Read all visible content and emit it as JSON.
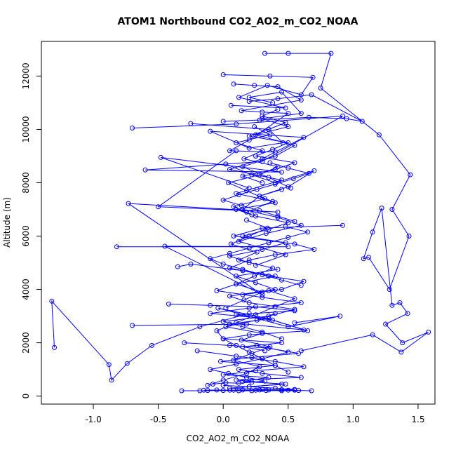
{
  "chart_data": {
    "type": "line",
    "title": "ATOM1 Northbound CO2_AO2_m_CO2_NOAA",
    "xlabel": "CO2_AO2_m_CO2_NOAA",
    "ylabel": "Altitude (m)",
    "xlim": [
      -1.4,
      1.63
    ],
    "ylim": [
      -300,
      13300
    ],
    "x_ticks": [
      -1.0,
      -0.5,
      0.0,
      0.5,
      1.0,
      1.5
    ],
    "x_tick_labels": [
      "-1.0",
      "-0.5",
      "0.0",
      "0.5",
      "1.0",
      "1.5"
    ],
    "y_ticks": [
      0,
      2000,
      4000,
      6000,
      8000,
      10000,
      12000
    ],
    "y_tick_labels": [
      "0",
      "2000",
      "4000",
      "6000",
      "8000",
      "10000",
      "12000"
    ],
    "grid": false,
    "legend": "none",
    "marker": "open-circle",
    "color": "#0000ff",
    "series": [
      {
        "x": [
          0.32,
          0.5,
          0.83,
          0.75,
          1.2,
          1.44,
          1.3,
          1.43,
          1.28,
          1.12,
          1.08,
          1.15,
          1.22,
          1.3,
          1.36,
          1.42,
          1.25,
          1.38,
          1.58,
          1.37,
          1.15,
          0.6
        ],
        "y": [
          12850,
          12850,
          12850,
          11550,
          9800,
          8300,
          7000,
          6000,
          4000,
          5200,
          5150,
          6150,
          7050,
          3400,
          3500,
          3100,
          2700,
          2000,
          2400,
          1650,
          2300,
          1700
        ]
      },
      {
        "x": [
          -1.3,
          -1.32,
          -0.88,
          -0.86,
          -0.74,
          -0.55,
          -0.18,
          0.2
        ],
        "y": [
          1820,
          3560,
          1180,
          600,
          1220,
          1900,
          2600,
          3100
        ]
      },
      {
        "x": [
          -0.82,
          0.5,
          -0.45,
          0.3,
          -0.73,
          0.42,
          -0.5,
          0.1
        ],
        "y": [
          5600,
          5600,
          5620,
          3800,
          7220,
          6900,
          7100,
          9200
        ]
      },
      {
        "x": [
          -0.7,
          0.1,
          0.92,
          0.3,
          -0.6,
          0.45,
          -0.48,
          0.2
        ],
        "y": [
          10050,
          10200,
          10500,
          8800,
          8480,
          8400,
          8950,
          7800
        ]
      },
      {
        "x": [
          -0.7,
          0.18,
          0.62,
          0.35,
          -0.04,
          0.5,
          0.9,
          0.55
        ],
        "y": [
          2650,
          2700,
          2480,
          2900,
          3300,
          2600,
          3000,
          2750
        ]
      },
      {
        "x": [
          0.0,
          0.28,
          0.66,
          0.95,
          1.07,
          0.68,
          0.42,
          0.2
        ],
        "y": [
          10300,
          10350,
          10450,
          10400,
          10300,
          11300,
          11150,
          11050
        ]
      },
      {
        "x": [
          0.0,
          0.36,
          0.69,
          0.6,
          0.34,
          0.12,
          0.48,
          0.06
        ],
        "y": [
          12050,
          12000,
          11950,
          11300,
          11650,
          11200,
          10800,
          10900
        ]
      },
      {
        "x": [
          0.08,
          0.24,
          0.42,
          0.6,
          0.14,
          0.3,
          0.5,
          0.2,
          0.05,
          0.4
        ],
        "y": [
          11700,
          11650,
          11600,
          11100,
          10700,
          10650,
          10600,
          9600,
          9200,
          9150
        ]
      },
      {
        "x": [
          -0.25,
          0.35,
          0.46,
          0.2,
          -0.1,
          0.62,
          0.3,
          0.05,
          0.45,
          0.1,
          0.38,
          0.18
        ],
        "y": [
          10220,
          10000,
          9500,
          9300,
          9930,
          9700,
          8900,
          8500,
          8100,
          7600,
          7300,
          6900
        ]
      },
      {
        "x": [
          0.02,
          0.22,
          0.4,
          0.7,
          0.5,
          0.28,
          0.15,
          0.42,
          0.6,
          0.33,
          0.12,
          0.48,
          0.25
        ],
        "y": [
          8700,
          8300,
          8000,
          8450,
          7850,
          7500,
          7000,
          6700,
          6400,
          6100,
          5800,
          5300,
          4900
        ]
      },
      {
        "x": [
          0.92,
          0.3,
          0.08,
          0.55,
          0.7,
          0.4,
          0.2,
          0.05,
          0.35,
          0.62,
          0.45,
          0.15
        ],
        "y": [
          6400,
          6300,
          6000,
          5700,
          5500,
          5300,
          5100,
          4800,
          4500,
          4300,
          4000,
          3800
        ]
      },
      {
        "x": [
          -0.35,
          -0.25,
          0.15,
          0.4,
          0.1,
          -0.05,
          0.3,
          0.6,
          0.2,
          -0.1,
          0.35,
          0.05
        ],
        "y": [
          4850,
          4950,
          4700,
          4500,
          4200,
          3950,
          3700,
          3500,
          3300,
          3100,
          2900,
          2700
        ]
      },
      {
        "x": [
          -0.42,
          -0.1,
          0.25,
          0.55,
          0.1,
          0.38,
          0.65,
          0.2,
          0.0,
          0.45,
          0.15,
          0.32
        ],
        "y": [
          3450,
          3400,
          3350,
          3200,
          3050,
          2850,
          2450,
          2300,
          2150,
          2000,
          1850,
          1700
        ]
      },
      {
        "x": [
          -0.3,
          0.05,
          0.35,
          0.58,
          0.22,
          -0.02,
          0.4,
          0.12,
          0.3,
          0.6,
          0.1,
          0.45,
          0.2
        ],
        "y": [
          2000,
          1900,
          1800,
          1600,
          1450,
          1300,
          1150,
          1000,
          850,
          700,
          600,
          450,
          350
        ]
      },
      {
        "x": [
          -0.2,
          0.1,
          0.4,
          0.62,
          0.25,
          0.0,
          0.35,
          0.15,
          0.48,
          0.05,
          0.3,
          0.55
        ],
        "y": [
          1700,
          1500,
          1300,
          1100,
          950,
          800,
          700,
          550,
          450,
          300,
          250,
          220
        ]
      },
      {
        "x": [
          -0.32,
          -0.18,
          0.0,
          0.12,
          0.22,
          0.33,
          0.45,
          0.58,
          0.68,
          0.5,
          0.28,
          0.08,
          -0.12
        ],
        "y": [
          200,
          200,
          210,
          200,
          200,
          210,
          200,
          210,
          200,
          220,
          230,
          220,
          210
        ]
      },
      {
        "x": [
          -0.15,
          -0.05,
          0.05,
          0.15,
          0.25,
          0.35,
          0.45,
          0.55,
          0.4,
          0.2,
          0.0
        ],
        "y": [
          220,
          230,
          220,
          230,
          220,
          230,
          240,
          250,
          300,
          350,
          400
        ]
      },
      {
        "x": [
          -0.08,
          0.02,
          0.12,
          0.22,
          0.32,
          0.18,
          0.04,
          -0.1,
          0.1,
          0.3,
          0.5,
          0.26
        ],
        "y": [
          450,
          500,
          480,
          520,
          560,
          700,
          850,
          1000,
          1200,
          1400,
          1650,
          1900
        ]
      },
      {
        "x": [
          0.45,
          0.3,
          0.15,
          0.0,
          0.35,
          0.55,
          0.2,
          0.05,
          0.4,
          0.25,
          0.1,
          0.42
        ],
        "y": [
          2150,
          2400,
          2600,
          2800,
          3000,
          3250,
          3500,
          3750,
          4000,
          4250,
          4500,
          4750
        ]
      },
      {
        "x": [
          0.2,
          0.05,
          0.3,
          0.48,
          0.15,
          0.35,
          0.5,
          0.25,
          0.1,
          0.4,
          0.28,
          0.45
        ],
        "y": [
          5000,
          5250,
          5500,
          5750,
          6000,
          6250,
          6500,
          6750,
          7000,
          7250,
          7500,
          7750
        ]
      },
      {
        "x": [
          0.3,
          0.15,
          0.4,
          0.55,
          0.25,
          0.38,
          0.5,
          0.2,
          0.35,
          0.48,
          0.3,
          0.42
        ],
        "y": [
          8000,
          8250,
          8500,
          8750,
          9000,
          9250,
          9500,
          9750,
          10000,
          10250,
          10500,
          10750
        ]
      },
      {
        "x": [
          0.38,
          0.2,
          0.45,
          0.6,
          0.3,
          0.5,
          0.25,
          0.55,
          0.4,
          0.15,
          0.35,
          0.52
        ],
        "y": [
          11000,
          11200,
          11400,
          10600,
          10400,
          10100,
          9800,
          9400,
          9000,
          8600,
          8200,
          7800
        ]
      },
      {
        "x": [
          -0.12,
          0.0,
          0.18,
          0.28,
          0.08,
          0.22,
          0.36,
          0.14,
          0.3,
          0.02,
          0.26,
          0.4
        ],
        "y": [
          400,
          600,
          850,
          1100,
          1350,
          1600,
          1850,
          2100,
          2350,
          2600,
          2850,
          3100
        ]
      },
      {
        "x": [
          0.02,
          0.16,
          0.3,
          0.1,
          0.24,
          0.38,
          0.12,
          0.26,
          0.06,
          0.2,
          0.34,
          0.18
        ],
        "y": [
          3300,
          3600,
          3900,
          4200,
          4500,
          4800,
          5100,
          5400,
          5700,
          6000,
          6300,
          6600
        ]
      },
      {
        "x": [
          0.22,
          0.08,
          0.32,
          0.18,
          0.04,
          0.28,
          0.42,
          0.16,
          0.3,
          0.1,
          0.36,
          0.24
        ],
        "y": [
          6800,
          7100,
          7400,
          7700,
          8000,
          8300,
          8600,
          8900,
          9200,
          9500,
          9800,
          10100
        ]
      },
      {
        "x": [
          0.5,
          0.4,
          0.3,
          0.2,
          0.1,
          0.0,
          -0.05,
          0.1,
          0.25,
          0.4,
          0.55,
          0.35
        ],
        "y": [
          900,
          1150,
          1400,
          1650,
          1900,
          2150,
          2450,
          2750,
          3050,
          3350,
          3650,
          3950
        ]
      },
      {
        "x": [
          0.6,
          0.45,
          0.3,
          0.15,
          0.0,
          -0.1,
          0.05,
          0.2,
          0.35,
          0.5,
          0.65,
          0.48
        ],
        "y": [
          4150,
          4350,
          4550,
          4750,
          4950,
          5150,
          5350,
          5550,
          5750,
          5950,
          6150,
          6350
        ]
      },
      {
        "x": [
          0.55,
          0.42,
          0.28,
          0.14,
          0.0,
          0.12,
          0.26,
          0.4,
          0.54,
          0.66,
          0.5,
          0.36
        ],
        "y": [
          6550,
          6750,
          6950,
          7150,
          7350,
          7550,
          7750,
          7950,
          8150,
          8350,
          8550,
          8750
        ]
      }
    ]
  }
}
